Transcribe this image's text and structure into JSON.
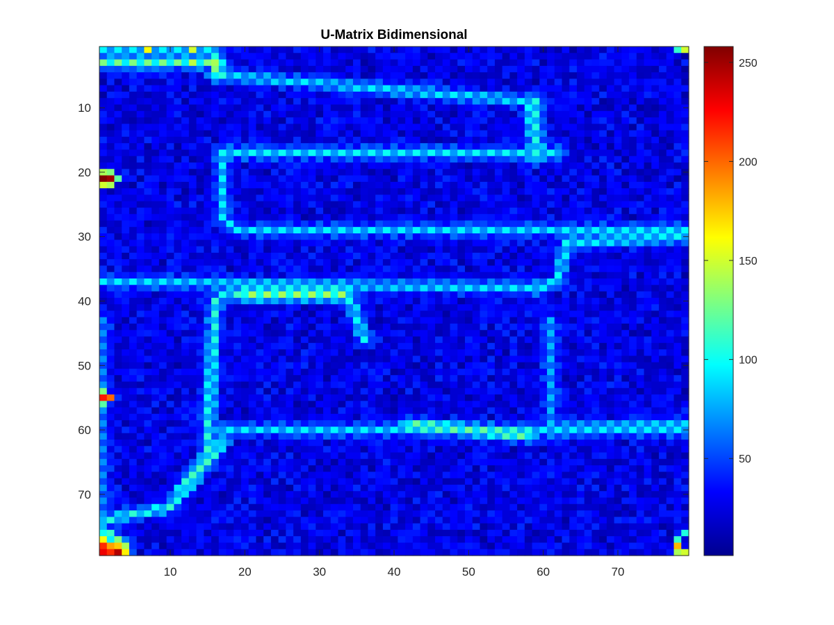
{
  "chart_data": {
    "type": "heatmap",
    "title": "U-Matrix Bidimensional",
    "xlabel": "",
    "ylabel": "",
    "grid": "off",
    "colormap": "jet",
    "x_range": [
      0.5,
      79.5
    ],
    "y_range": [
      0.5,
      79.5
    ],
    "y_direction": "reverse",
    "x_ticks": [
      10,
      20,
      30,
      40,
      50,
      60,
      70
    ],
    "y_ticks": [
      10,
      20,
      30,
      40,
      50,
      60,
      70
    ],
    "colorbar": {
      "range": [
        1,
        258
      ],
      "ticks": [
        50,
        100,
        150,
        200,
        250
      ],
      "placement": "right"
    },
    "grid_size": [
      79,
      79
    ],
    "background_value": 30,
    "ridges": [
      {
        "points": [
          [
            1,
            1
          ],
          [
            16,
            1
          ],
          [
            17,
            5
          ],
          [
            58,
            9
          ],
          [
            59,
            16
          ]
        ],
        "value": 95
      },
      {
        "points": [
          [
            1,
            3
          ],
          [
            16,
            3
          ],
          [
            16,
            5
          ]
        ],
        "value": 130
      },
      {
        "points": [
          [
            59,
            9
          ],
          [
            59,
            18
          ]
        ],
        "value": 105
      },
      {
        "points": [
          [
            17,
            17
          ],
          [
            62,
            17
          ]
        ],
        "value": 100
      },
      {
        "points": [
          [
            17,
            17
          ],
          [
            17,
            27
          ],
          [
            19,
            29
          ],
          [
            79,
            29
          ]
        ],
        "value": 95
      },
      {
        "points": [
          [
            79,
            30
          ],
          [
            63,
            31
          ],
          [
            62,
            37
          ],
          [
            59,
            38
          ]
        ],
        "value": 100
      },
      {
        "points": [
          [
            1,
            37
          ],
          [
            59,
            38
          ]
        ],
        "value": 95
      },
      {
        "points": [
          [
            17,
            39
          ],
          [
            34,
            39
          ],
          [
            36,
            46
          ]
        ],
        "value": 100
      },
      {
        "points": [
          [
            20,
            39
          ],
          [
            33,
            39
          ]
        ],
        "value": 140
      },
      {
        "points": [
          [
            16,
            40
          ],
          [
            15,
            64
          ],
          [
            10,
            72
          ],
          [
            1,
            74
          ]
        ],
        "value": 110
      },
      {
        "points": [
          [
            1,
            76
          ],
          [
            4,
            78
          ]
        ],
        "value": 140
      },
      {
        "points": [
          [
            17,
            60
          ],
          [
            79,
            60
          ]
        ],
        "value": 95
      },
      {
        "points": [
          [
            17,
            62
          ],
          [
            12,
            69
          ]
        ],
        "value": 115
      },
      {
        "points": [
          [
            42,
            59
          ],
          [
            58,
            61
          ]
        ],
        "value": 125
      },
      {
        "points": [
          [
            61,
            43
          ],
          [
            61,
            60
          ]
        ],
        "value": 80
      },
      {
        "points": [
          [
            61,
            60
          ],
          [
            79,
            59
          ]
        ],
        "value": 90
      },
      {
        "points": [
          [
            1,
            43
          ],
          [
            1,
            78
          ]
        ],
        "value": 70
      }
    ],
    "hotspots": [
      {
        "x": 1,
        "y": 21,
        "value": 258
      },
      {
        "x": 2,
        "y": 21,
        "value": 250
      },
      {
        "x": 1,
        "y": 20,
        "value": 140
      },
      {
        "x": 1,
        "y": 22,
        "value": 150
      },
      {
        "x": 2,
        "y": 20,
        "value": 130
      },
      {
        "x": 2,
        "y": 22,
        "value": 140
      },
      {
        "x": 3,
        "y": 21,
        "value": 120
      },
      {
        "x": 1,
        "y": 55,
        "value": 220
      },
      {
        "x": 2,
        "y": 55,
        "value": 200
      },
      {
        "x": 1,
        "y": 54,
        "value": 130
      },
      {
        "x": 1,
        "y": 56,
        "value": 120
      },
      {
        "x": 1,
        "y": 78,
        "value": 215
      },
      {
        "x": 1,
        "y": 79,
        "value": 230
      },
      {
        "x": 2,
        "y": 79,
        "value": 215
      },
      {
        "x": 3,
        "y": 79,
        "value": 245
      },
      {
        "x": 2,
        "y": 78,
        "value": 185
      },
      {
        "x": 3,
        "y": 78,
        "value": 175
      },
      {
        "x": 4,
        "y": 79,
        "value": 165
      },
      {
        "x": 1,
        "y": 77,
        "value": 160
      },
      {
        "x": 78,
        "y": 78,
        "value": 180
      },
      {
        "x": 79,
        "y": 79,
        "value": 150
      },
      {
        "x": 78,
        "y": 79,
        "value": 140
      },
      {
        "x": 79,
        "y": 1,
        "value": 150
      },
      {
        "x": 78,
        "y": 1,
        "value": 110
      },
      {
        "x": 7,
        "y": 1,
        "value": 160
      },
      {
        "x": 13,
        "y": 1,
        "value": 150
      },
      {
        "x": 13,
        "y": 3,
        "value": 145
      },
      {
        "x": 16,
        "y": 3,
        "value": 140
      },
      {
        "x": 78,
        "y": 77,
        "value": 110
      },
      {
        "x": 79,
        "y": 76,
        "value": 105
      }
    ]
  }
}
